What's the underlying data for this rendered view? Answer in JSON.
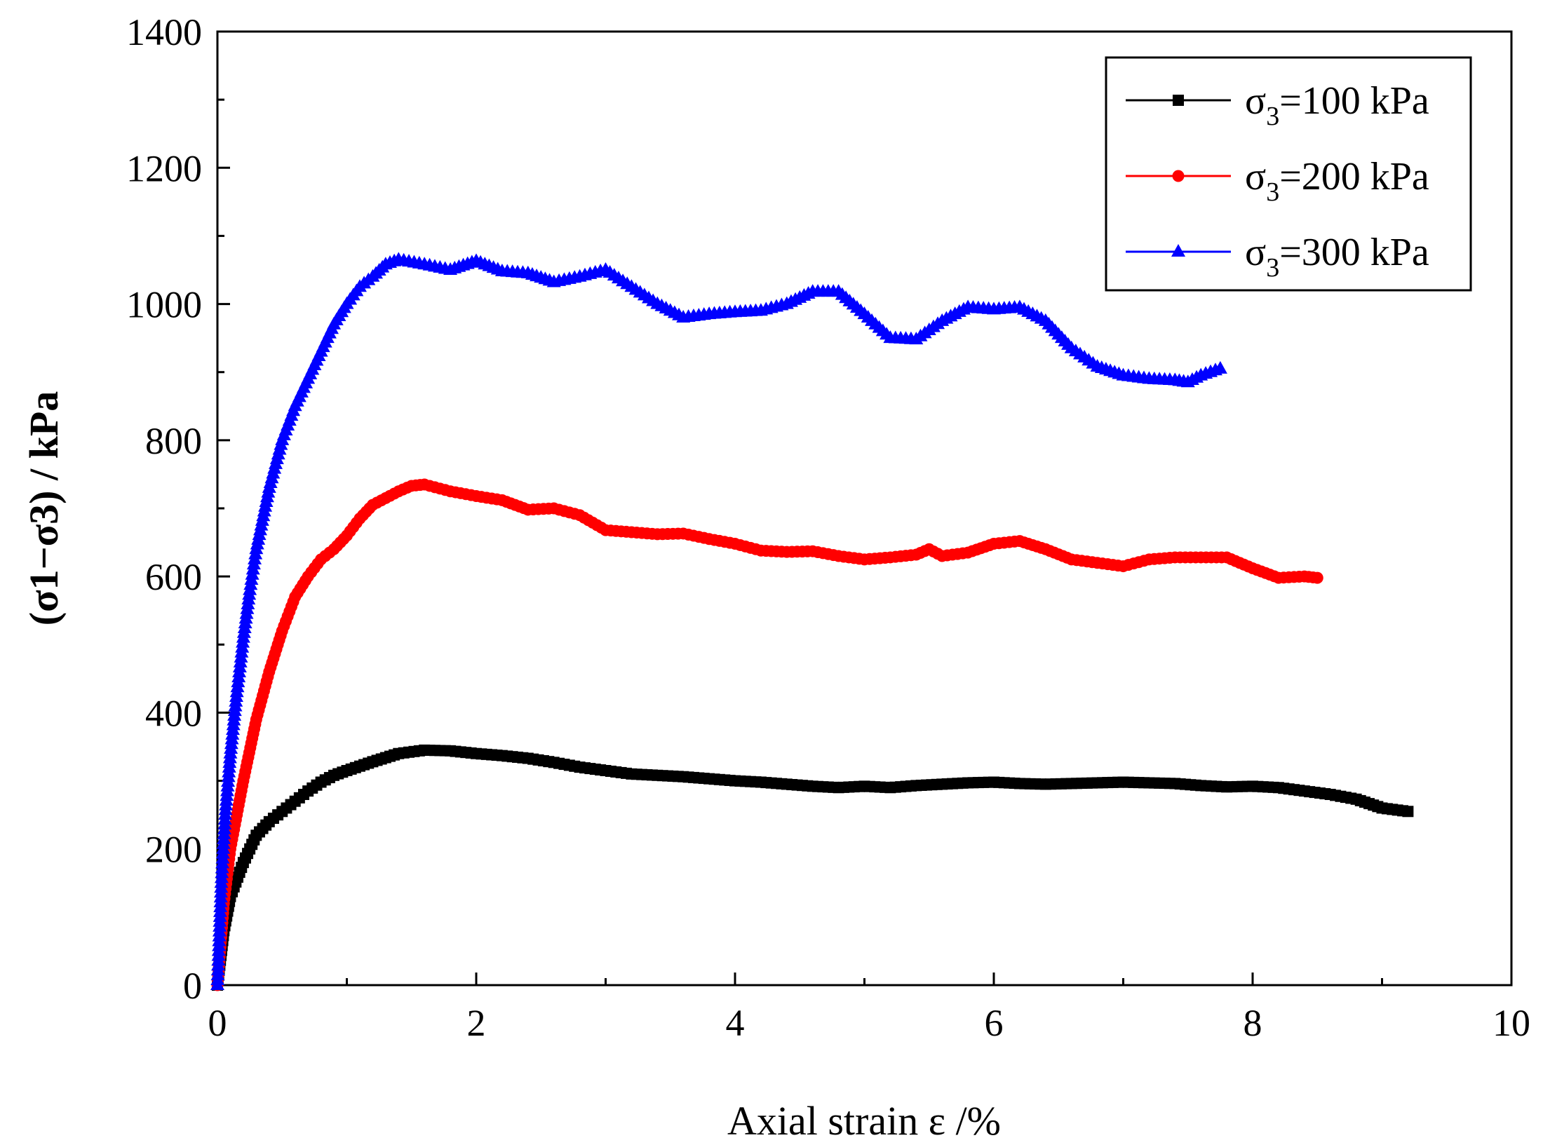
{
  "chart_data": {
    "type": "line",
    "title": "",
    "xlabel": "Axial strain ε /%",
    "ylabel": "(σ1−σ3) / kPa",
    "xlim": [
      0,
      10
    ],
    "ylim": [
      0,
      1400
    ],
    "xticks": [
      0,
      2,
      4,
      6,
      8,
      10
    ],
    "yticks": [
      0,
      200,
      400,
      600,
      800,
      1000,
      1200,
      1400
    ],
    "xtick_labels": [
      "0",
      "2",
      "4",
      "6",
      "8",
      "10"
    ],
    "ytick_labels": [
      "0",
      "200",
      "400",
      "600",
      "800",
      "1000",
      "1200",
      "1400"
    ],
    "grid": false,
    "legend_position": "top-right",
    "series": [
      {
        "name": "σ3=100 kPa",
        "legend_symbol": "σ",
        "legend_sub": "3",
        "legend_rest": "=100 kPa",
        "color": "#000000",
        "marker": "square",
        "points": [
          [
            0,
            0
          ],
          [
            0.05,
            80
          ],
          [
            0.1,
            130
          ],
          [
            0.2,
            180
          ],
          [
            0.3,
            220
          ],
          [
            0.4,
            240
          ],
          [
            0.5,
            255
          ],
          [
            0.6,
            270
          ],
          [
            0.7,
            285
          ],
          [
            0.8,
            298
          ],
          [
            0.9,
            308
          ],
          [
            1.0,
            315
          ],
          [
            1.2,
            328
          ],
          [
            1.4,
            340
          ],
          [
            1.6,
            345
          ],
          [
            1.8,
            344
          ],
          [
            2.0,
            340
          ],
          [
            2.2,
            337
          ],
          [
            2.4,
            333
          ],
          [
            2.6,
            327
          ],
          [
            2.8,
            320
          ],
          [
            3.0,
            315
          ],
          [
            3.2,
            310
          ],
          [
            3.4,
            308
          ],
          [
            3.6,
            306
          ],
          [
            3.8,
            303
          ],
          [
            4.0,
            300
          ],
          [
            4.2,
            298
          ],
          [
            4.4,
            295
          ],
          [
            4.6,
            292
          ],
          [
            4.8,
            290
          ],
          [
            5.0,
            292
          ],
          [
            5.2,
            290
          ],
          [
            5.4,
            293
          ],
          [
            5.6,
            295
          ],
          [
            5.8,
            297
          ],
          [
            6.0,
            298
          ],
          [
            6.2,
            296
          ],
          [
            6.4,
            295
          ],
          [
            6.6,
            296
          ],
          [
            6.8,
            297
          ],
          [
            7.0,
            298
          ],
          [
            7.2,
            297
          ],
          [
            7.4,
            296
          ],
          [
            7.6,
            293
          ],
          [
            7.8,
            291
          ],
          [
            8.0,
            292
          ],
          [
            8.2,
            290
          ],
          [
            8.4,
            285
          ],
          [
            8.6,
            280
          ],
          [
            8.8,
            273
          ],
          [
            9.0,
            260
          ],
          [
            9.2,
            255
          ]
        ]
      },
      {
        "name": "σ3=200 kPa",
        "legend_symbol": "σ",
        "legend_sub": "3",
        "legend_rest": "=200 kPa",
        "color": "#ff0000",
        "marker": "circle",
        "points": [
          [
            0,
            0
          ],
          [
            0.05,
            120
          ],
          [
            0.1,
            200
          ],
          [
            0.2,
            300
          ],
          [
            0.3,
            390
          ],
          [
            0.4,
            460
          ],
          [
            0.5,
            520
          ],
          [
            0.6,
            570
          ],
          [
            0.7,
            600
          ],
          [
            0.8,
            625
          ],
          [
            0.9,
            640
          ],
          [
            1.0,
            660
          ],
          [
            1.1,
            685
          ],
          [
            1.2,
            705
          ],
          [
            1.3,
            715
          ],
          [
            1.4,
            725
          ],
          [
            1.5,
            733
          ],
          [
            1.6,
            735
          ],
          [
            1.8,
            725
          ],
          [
            2.0,
            718
          ],
          [
            2.2,
            712
          ],
          [
            2.4,
            698
          ],
          [
            2.6,
            700
          ],
          [
            2.8,
            690
          ],
          [
            3.0,
            668
          ],
          [
            3.2,
            665
          ],
          [
            3.4,
            662
          ],
          [
            3.6,
            663
          ],
          [
            3.8,
            655
          ],
          [
            4.0,
            648
          ],
          [
            4.2,
            638
          ],
          [
            4.4,
            636
          ],
          [
            4.6,
            637
          ],
          [
            4.8,
            630
          ],
          [
            5.0,
            625
          ],
          [
            5.2,
            628
          ],
          [
            5.4,
            632
          ],
          [
            5.5,
            640
          ],
          [
            5.6,
            630
          ],
          [
            5.8,
            635
          ],
          [
            6.0,
            648
          ],
          [
            6.2,
            652
          ],
          [
            6.4,
            640
          ],
          [
            6.6,
            625
          ],
          [
            6.8,
            620
          ],
          [
            7.0,
            615
          ],
          [
            7.2,
            625
          ],
          [
            7.4,
            628
          ],
          [
            7.6,
            628
          ],
          [
            7.8,
            628
          ],
          [
            8.0,
            612
          ],
          [
            8.2,
            598
          ],
          [
            8.4,
            600
          ],
          [
            8.5,
            598
          ]
        ]
      },
      {
        "name": "σ3=300 kPa",
        "legend_symbol": "σ",
        "legend_sub": "3",
        "legend_rest": "=300 kPa",
        "color": "#0000ff",
        "marker": "triangle",
        "points": [
          [
            0,
            0
          ],
          [
            0.03,
            150
          ],
          [
            0.06,
            250
          ],
          [
            0.1,
            340
          ],
          [
            0.15,
            430
          ],
          [
            0.2,
            510
          ],
          [
            0.25,
            580
          ],
          [
            0.3,
            640
          ],
          [
            0.4,
            730
          ],
          [
            0.5,
            800
          ],
          [
            0.6,
            850
          ],
          [
            0.7,
            890
          ],
          [
            0.8,
            930
          ],
          [
            0.9,
            970
          ],
          [
            1.0,
            1000
          ],
          [
            1.1,
            1025
          ],
          [
            1.2,
            1040
          ],
          [
            1.3,
            1058
          ],
          [
            1.4,
            1065
          ],
          [
            1.6,
            1058
          ],
          [
            1.8,
            1050
          ],
          [
            2.0,
            1063
          ],
          [
            2.2,
            1048
          ],
          [
            2.4,
            1045
          ],
          [
            2.6,
            1032
          ],
          [
            2.8,
            1040
          ],
          [
            3.0,
            1050
          ],
          [
            3.2,
            1025
          ],
          [
            3.4,
            1000
          ],
          [
            3.6,
            980
          ],
          [
            3.8,
            985
          ],
          [
            4.0,
            988
          ],
          [
            4.2,
            990
          ],
          [
            4.4,
            1000
          ],
          [
            4.6,
            1018
          ],
          [
            4.8,
            1018
          ],
          [
            5.0,
            985
          ],
          [
            5.2,
            950
          ],
          [
            5.4,
            948
          ],
          [
            5.6,
            975
          ],
          [
            5.8,
            995
          ],
          [
            6.0,
            992
          ],
          [
            6.2,
            995
          ],
          [
            6.4,
            975
          ],
          [
            6.6,
            935
          ],
          [
            6.8,
            908
          ],
          [
            7.0,
            895
          ],
          [
            7.2,
            890
          ],
          [
            7.4,
            888
          ],
          [
            7.5,
            885
          ],
          [
            7.6,
            895
          ],
          [
            7.75,
            905
          ]
        ]
      }
    ]
  }
}
